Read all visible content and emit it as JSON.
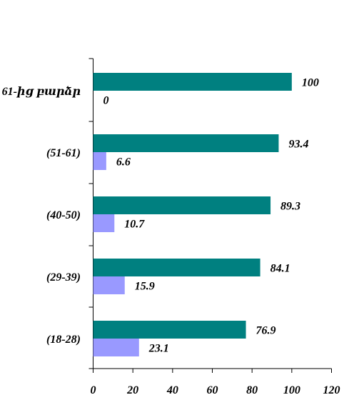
{
  "chart_data": {
    "type": "bar",
    "orientation": "horizontal",
    "categories": [
      "61-ից բարձր",
      "(51-61)",
      "(40-50)",
      "(29-39)",
      "(18-28)"
    ],
    "series": [
      {
        "values": [
          100,
          93.4,
          89.3,
          84.1,
          76.9
        ],
        "color": "#008080"
      },
      {
        "values": [
          0,
          6.6,
          10.7,
          15.9,
          23.1
        ],
        "color": "#9999ff"
      }
    ],
    "xlim": [
      0,
      120
    ],
    "xticks": [
      0,
      20,
      40,
      60,
      80,
      100,
      120
    ],
    "grid": false,
    "legend": "none"
  }
}
